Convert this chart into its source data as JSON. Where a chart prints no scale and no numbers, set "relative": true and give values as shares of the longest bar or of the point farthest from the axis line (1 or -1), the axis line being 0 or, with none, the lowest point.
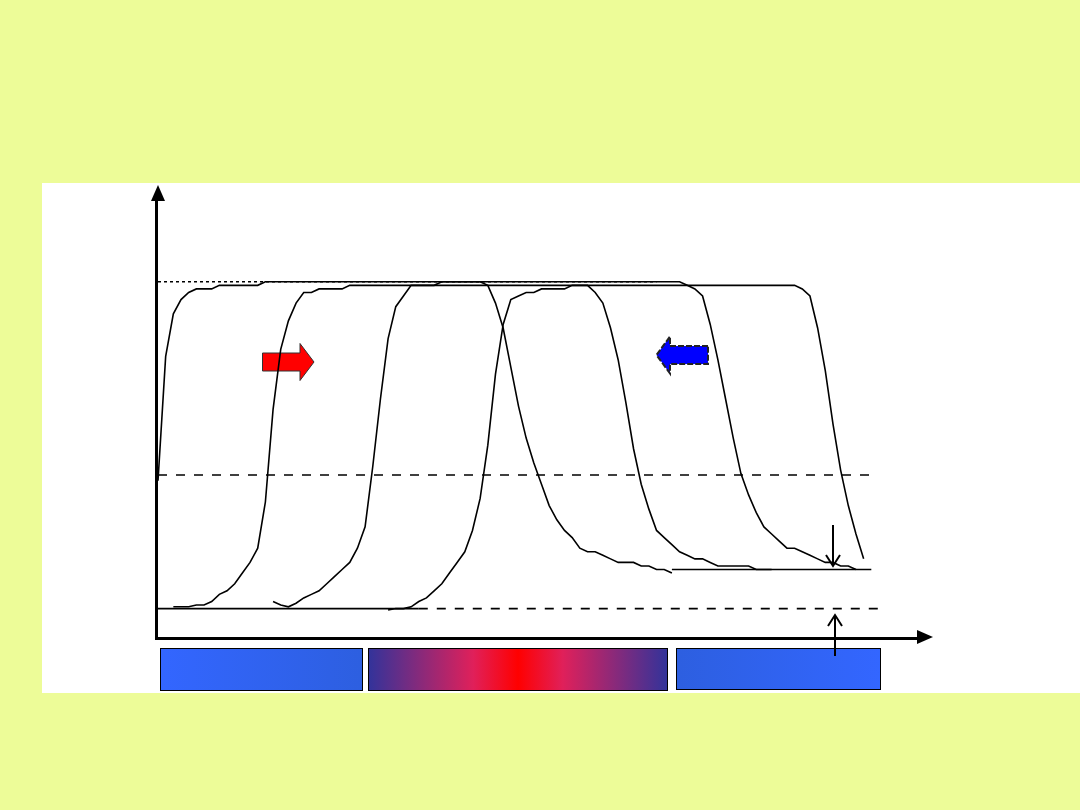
{
  "chart_data": {
    "type": "line",
    "relative": true,
    "grid": false,
    "legend": false,
    "categories": [
      null,
      null,
      null,
      null,
      null,
      null,
      null,
      null,
      null,
      null,
      null,
      null,
      null,
      null,
      null,
      null,
      null,
      null,
      null,
      null,
      null,
      null,
      null,
      null,
      null,
      null,
      null,
      null,
      null,
      null,
      null,
      null,
      null,
      null,
      null,
      null,
      null,
      null,
      null,
      null,
      null,
      null,
      null,
      null,
      null,
      null,
      null,
      null,
      null,
      null,
      null,
      null,
      null,
      null,
      null,
      null,
      null,
      null,
      null,
      null,
      null,
      null,
      null,
      null,
      null,
      null,
      null,
      null,
      null,
      null,
      null,
      null,
      null,
      null,
      null,
      null,
      null,
      null,
      null,
      null,
      null,
      null,
      null,
      null,
      null,
      null,
      null,
      null,
      null,
      null,
      null,
      null,
      null,
      null,
      null,
      null,
      null,
      null,
      null,
      null,
      null
    ],
    "series": [
      {
        "color": "#000000",
        "line_style": "solid",
        "values": [
          0.44,
          0.79,
          0.91,
          0.95,
          0.97,
          0.98,
          0.98,
          0.98,
          0.99,
          0.99,
          0.99,
          0.99,
          0.99,
          0.99,
          1.0,
          1.0,
          1.0,
          1.0,
          1.0,
          1.0,
          1.0,
          1.0,
          1.0,
          1.0,
          1.0,
          1.0,
          1.0,
          1.0,
          1.0,
          1.0,
          1.0,
          1.0,
          1.0,
          1.0,
          1.0,
          1.0,
          1.0,
          1.0,
          1.0,
          1.0,
          1.0,
          1.0,
          1.0,
          1.0,
          1.0,
          1.0,
          1.0,
          1.0,
          1.0,
          1.0,
          1.0,
          1.0,
          1.0,
          1.0,
          1.0,
          1.0,
          1.0,
          1.0,
          1.0,
          1.0,
          1.0,
          1.0,
          1.0,
          1.0,
          1.0,
          1.0,
          1.0,
          1.0,
          1.0,
          0.99,
          0.98,
          0.96,
          0.88,
          0.78,
          0.67,
          0.56,
          0.46,
          0.4,
          0.35,
          0.31,
          0.29,
          0.27,
          0.25,
          0.25,
          0.24,
          0.23,
          0.22,
          0.21,
          0.21,
          0.2,
          0.2,
          0.19,
          null,
          null,
          null,
          null,
          null,
          null,
          null,
          null,
          null
        ]
      },
      {
        "color": "#000000",
        "line_style": "solid",
        "values": [
          null,
          null,
          0.085,
          0.085,
          0.085,
          0.09,
          0.09,
          0.1,
          0.12,
          0.13,
          0.15,
          0.18,
          0.21,
          0.25,
          0.38,
          0.64,
          0.81,
          0.89,
          0.94,
          0.97,
          0.97,
          0.98,
          0.98,
          0.98,
          0.98,
          0.99,
          0.99,
          0.99,
          0.99,
          0.99,
          0.99,
          0.99,
          0.99,
          0.99,
          0.99,
          0.99,
          0.99,
          0.99,
          0.99,
          0.99,
          0.99,
          0.99,
          0.99,
          0.99,
          0.99,
          0.99,
          0.99,
          0.99,
          0.99,
          0.99,
          0.99,
          0.99,
          0.99,
          0.99,
          0.99,
          0.99,
          0.99,
          0.97,
          0.94,
          0.87,
          0.78,
          0.66,
          0.53,
          0.43,
          0.36,
          0.3,
          0.28,
          0.26,
          0.24,
          0.23,
          0.22,
          0.22,
          0.21,
          0.2,
          0.2,
          0.2,
          0.2,
          0.2,
          0.19,
          0.19,
          0.19,
          null,
          null,
          null,
          null,
          null,
          null,
          null,
          null,
          null,
          null,
          null,
          null,
          null,
          null,
          null,
          null,
          null,
          null,
          null,
          null
        ]
      },
      {
        "color": "#000000",
        "line_style": "solid",
        "values": [
          null,
          null,
          null,
          null,
          null,
          null,
          null,
          null,
          null,
          null,
          null,
          null,
          null,
          null,
          null,
          0.1,
          0.09,
          0.085,
          0.095,
          0.11,
          0.12,
          0.13,
          0.15,
          0.17,
          0.19,
          0.21,
          0.25,
          0.31,
          0.48,
          0.67,
          0.84,
          0.93,
          0.96,
          0.99,
          0.99,
          0.99,
          0.99,
          1.0,
          1.0,
          1.0,
          1.0,
          1.0,
          1.0,
          0.99,
          0.94,
          0.87,
          0.76,
          0.65,
          0.56,
          0.49,
          0.43,
          0.37,
          0.33,
          0.3,
          0.28,
          0.25,
          0.24,
          0.24,
          0.23,
          0.22,
          0.21,
          0.21,
          0.21,
          0.2,
          0.2,
          0.19,
          0.19,
          0.18,
          null,
          null,
          null,
          null,
          null,
          null,
          null,
          null,
          null,
          null,
          null,
          null,
          null,
          null,
          null,
          null,
          null,
          null,
          null,
          null,
          null,
          null,
          null,
          null,
          null,
          null,
          null,
          null,
          null,
          null,
          null,
          null,
          null
        ]
      },
      {
        "color": "#000000",
        "line_style": "solid",
        "values": [
          null,
          null,
          null,
          null,
          null,
          null,
          null,
          null,
          null,
          null,
          null,
          null,
          null,
          null,
          null,
          null,
          null,
          null,
          null,
          null,
          null,
          null,
          null,
          null,
          null,
          null,
          null,
          null,
          null,
          null,
          0.076,
          0.08,
          0.08,
          0.085,
          0.1,
          0.11,
          0.13,
          0.15,
          0.18,
          0.21,
          0.24,
          0.3,
          0.39,
          0.54,
          0.74,
          0.88,
          0.95,
          0.96,
          0.97,
          0.97,
          0.98,
          0.98,
          0.98,
          0.98,
          0.99,
          0.99,
          0.99,
          0.99,
          0.99,
          0.99,
          0.99,
          0.99,
          0.99,
          0.99,
          0.99,
          0.99,
          0.99,
          0.99,
          0.99,
          0.99,
          0.99,
          0.99,
          0.99,
          0.99,
          0.99,
          0.99,
          0.99,
          0.99,
          0.99,
          0.99,
          0.99,
          0.99,
          0.99,
          0.99,
          0.98,
          0.96,
          0.87,
          0.75,
          0.6,
          0.47,
          0.37,
          0.29,
          0.22,
          null,
          null,
          null,
          null,
          null,
          null,
          null,
          null
        ]
      },
      {
        "color": "#000000",
        "line_style": "dotted",
        "values": [
          1.0,
          1.0,
          1.0,
          1.0,
          1.0,
          1.0,
          1.0,
          1.0,
          1.0,
          1.0,
          1.0,
          1.0,
          1.0,
          1.0,
          1.0,
          1.0,
          1.0,
          1.0,
          1.0,
          1.0,
          1.0,
          1.0,
          1.0,
          1.0,
          1.0,
          1.0,
          1.0,
          1.0,
          1.0,
          1.0,
          1.0,
          1.0,
          1.0,
          1.0,
          1.0,
          1.0,
          1.0,
          1.0,
          1.0,
          1.0,
          1.0,
          1.0,
          1.0,
          1.0,
          1.0,
          1.0,
          1.0,
          1.0,
          1.0,
          1.0,
          1.0,
          1.0,
          1.0,
          1.0,
          1.0,
          1.0,
          1.0,
          1.0,
          1.0,
          1.0,
          1.0,
          1.0,
          1.0,
          1.0,
          1.0,
          1.0,
          null,
          null,
          null,
          null,
          null,
          null,
          null,
          null,
          null,
          null,
          null,
          null,
          null,
          null,
          null,
          null,
          null,
          null,
          null,
          null,
          null,
          null,
          null,
          null,
          null,
          null,
          null,
          null,
          null,
          null,
          null,
          null,
          null,
          null,
          null
        ]
      },
      {
        "color": "#000000",
        "line_style": "dashed",
        "values": [
          0.456,
          0.456,
          0.456,
          0.456,
          0.456,
          0.456,
          0.456,
          0.456,
          0.456,
          0.456,
          0.456,
          0.456,
          0.456,
          0.456,
          0.456,
          0.456,
          0.456,
          0.456,
          0.456,
          0.456,
          0.456,
          0.456,
          0.456,
          0.456,
          0.456,
          0.456,
          0.456,
          0.456,
          0.456,
          0.456,
          0.456,
          0.456,
          0.456,
          0.456,
          0.456,
          0.456,
          0.456,
          0.456,
          0.456,
          0.456,
          0.456,
          0.456,
          0.456,
          0.456,
          0.456,
          0.456,
          0.456,
          0.456,
          0.456,
          0.456,
          0.456,
          0.456,
          0.456,
          0.456,
          0.456,
          0.456,
          0.456,
          0.456,
          0.456,
          0.456,
          0.456,
          0.456,
          0.456,
          0.456,
          0.456,
          0.456,
          0.456,
          0.456,
          0.456,
          0.456,
          0.456,
          0.456,
          0.456,
          0.456,
          0.456,
          0.456,
          0.456,
          0.456,
          0.456,
          0.456,
          0.456,
          0.456,
          0.456,
          0.456,
          0.456,
          0.456,
          0.456,
          0.456,
          0.456,
          0.456,
          0.456,
          0.456,
          0.456,
          0.456,
          null,
          null,
          null,
          null,
          null,
          null,
          null
        ]
      },
      {
        "color": "#000000",
        "line_style": "solid",
        "values": [
          0.08,
          0.08,
          0.08,
          0.08,
          0.08,
          0.08,
          0.08,
          0.08,
          0.08,
          0.08,
          0.08,
          0.08,
          0.08,
          0.08,
          0.08,
          0.08,
          0.08,
          0.08,
          0.08,
          0.08,
          0.08,
          0.08,
          0.08,
          0.08,
          0.08,
          0.08,
          0.08,
          0.08,
          0.08,
          0.08,
          0.08,
          0.08,
          0.08,
          0.08,
          0.08,
          null,
          null,
          null,
          null,
          null,
          null,
          null,
          null,
          null,
          null,
          null,
          null,
          null,
          null,
          null,
          null,
          null,
          null,
          null,
          null,
          null,
          null,
          null,
          null,
          null,
          null,
          null,
          null,
          null,
          null,
          null,
          null,
          null,
          null,
          null,
          null,
          null,
          null,
          null,
          null,
          null,
          null,
          null,
          null,
          null,
          null,
          null,
          null,
          null,
          null,
          null,
          null,
          null,
          null,
          null,
          null,
          null,
          null,
          null,
          null,
          null,
          null,
          null,
          null,
          null,
          null
        ]
      },
      {
        "color": "#000000",
        "line_style": "dashed",
        "values": [
          null,
          null,
          null,
          null,
          null,
          null,
          null,
          null,
          null,
          null,
          null,
          null,
          null,
          null,
          null,
          null,
          null,
          null,
          null,
          null,
          null,
          null,
          null,
          null,
          null,
          null,
          null,
          null,
          null,
          null,
          null,
          null,
          null,
          null,
          0.08,
          0.08,
          0.08,
          0.08,
          0.08,
          0.08,
          0.08,
          0.08,
          0.08,
          0.08,
          0.08,
          0.08,
          0.08,
          0.08,
          0.08,
          0.08,
          0.08,
          0.08,
          0.08,
          0.08,
          0.08,
          0.08,
          0.08,
          0.08,
          0.08,
          0.08,
          0.08,
          0.08,
          0.08,
          0.08,
          0.08,
          0.08,
          0.08,
          0.08,
          0.08,
          0.08,
          0.08,
          0.08,
          0.08,
          0.08,
          0.08,
          0.08,
          0.08,
          0.08,
          0.08,
          0.08,
          0.08,
          0.08,
          0.08,
          0.08,
          0.08,
          0.08,
          0.08,
          0.08,
          0.08,
          0.08,
          0.08,
          0.08,
          0.08,
          0.08,
          0.08,
          null,
          null,
          null,
          null,
          null,
          null
        ]
      },
      {
        "color": "#000000",
        "line_style": "solid",
        "values": [
          null,
          null,
          null,
          null,
          null,
          null,
          null,
          null,
          null,
          null,
          null,
          null,
          null,
          null,
          null,
          null,
          null,
          null,
          null,
          null,
          null,
          null,
          null,
          null,
          null,
          null,
          null,
          null,
          null,
          null,
          null,
          null,
          null,
          null,
          null,
          null,
          null,
          null,
          null,
          null,
          null,
          null,
          null,
          null,
          null,
          null,
          null,
          null,
          null,
          null,
          null,
          null,
          null,
          null,
          null,
          null,
          null,
          null,
          null,
          null,
          null,
          null,
          null,
          null,
          null,
          null,
          null,
          0.19,
          0.19,
          0.19,
          0.19,
          0.19,
          0.19,
          0.19,
          0.19,
          0.19,
          0.19,
          0.19,
          0.19,
          0.19,
          0.19,
          0.19,
          0.19,
          0.19,
          0.19,
          0.19,
          0.19,
          0.19,
          0.19,
          0.19,
          0.19,
          0.19,
          0.19,
          0.19,
          null,
          null,
          null,
          null,
          null,
          null,
          null
        ]
      }
    ]
  }
}
